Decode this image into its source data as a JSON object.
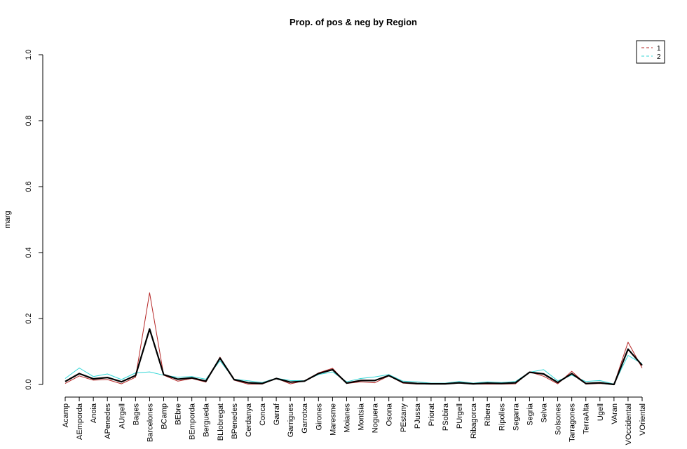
{
  "chart_data": {
    "type": "line",
    "title": "Prop. of pos & neg by Region",
    "xlabel": "",
    "ylabel": "marg",
    "ylim": [
      0,
      1
    ],
    "yticks": [
      "0.0",
      "0.2",
      "0.4",
      "0.6",
      "0.8",
      "1.0"
    ],
    "grid": false,
    "legend_position": "top-right",
    "categories": [
      "Acamp",
      "AEmporda",
      "Anoia",
      "APenedes",
      "AUrgell",
      "Bages",
      "Barcelones",
      "BCamp",
      "BEbre",
      "BEmporda",
      "Bergueda",
      "BLlobregat",
      "BPenedes",
      "Cerdanya",
      "Conca",
      "Garraf",
      "Garrigues",
      "Garrotxa",
      "Girones",
      "Maresme",
      "Moianes",
      "Montsia",
      "Noguera",
      "Osona",
      "PEstany",
      "PJussa",
      "Priorat",
      "PSobira",
      "PUrgell",
      "Ribagorca",
      "Ribera",
      "Ripolles",
      "Segarra",
      "Segria",
      "Selva",
      "Solsones",
      "Tarragones",
      "TerraAlta",
      "Ugell",
      "VAran",
      "VOccidental",
      "VOriental"
    ],
    "series": [
      {
        "values": [
          0.009,
          0.033,
          0.017,
          0.021,
          0.008,
          0.027,
          0.168,
          0.03,
          0.016,
          0.02,
          0.01,
          0.08,
          0.015,
          0.005,
          0.003,
          0.018,
          0.007,
          0.01,
          0.033,
          0.045,
          0.004,
          0.012,
          0.012,
          0.027,
          0.006,
          0.003,
          0.002,
          0.002,
          0.005,
          0.002,
          0.004,
          0.003,
          0.005,
          0.037,
          0.032,
          0.006,
          0.033,
          0.003,
          0.005,
          0.0,
          0.107,
          0.058
        ],
        "color": "#000000",
        "width": 2.2,
        "dash": ""
      },
      {
        "name": "1",
        "values": [
          0.003,
          0.026,
          0.013,
          0.015,
          0.002,
          0.022,
          0.278,
          0.028,
          0.01,
          0.018,
          0.007,
          0.083,
          0.013,
          0.001,
          0.001,
          0.019,
          0.002,
          0.011,
          0.035,
          0.049,
          0.003,
          0.008,
          0.005,
          0.026,
          0.004,
          0.001,
          0.001,
          0.001,
          0.004,
          0.001,
          0.001,
          0.001,
          0.002,
          0.038,
          0.025,
          0.002,
          0.04,
          0.001,
          0.003,
          0.0,
          0.128,
          0.05
        ],
        "color": "#b52525",
        "width": 1,
        "dash": ""
      },
      {
        "name": "2",
        "values": [
          0.018,
          0.05,
          0.024,
          0.032,
          0.015,
          0.035,
          0.038,
          0.028,
          0.022,
          0.024,
          0.016,
          0.072,
          0.016,
          0.011,
          0.006,
          0.019,
          0.012,
          0.011,
          0.03,
          0.038,
          0.008,
          0.018,
          0.023,
          0.03,
          0.01,
          0.008,
          0.004,
          0.004,
          0.009,
          0.004,
          0.008,
          0.006,
          0.009,
          0.037,
          0.045,
          0.011,
          0.028,
          0.009,
          0.012,
          0.001,
          0.088,
          0.063
        ],
        "color": "#33d6d6",
        "width": 1,
        "dash": ""
      }
    ],
    "legend": [
      {
        "label": "1",
        "color": "#b52525"
      },
      {
        "label": "2",
        "color": "#33d6d6"
      }
    ]
  }
}
